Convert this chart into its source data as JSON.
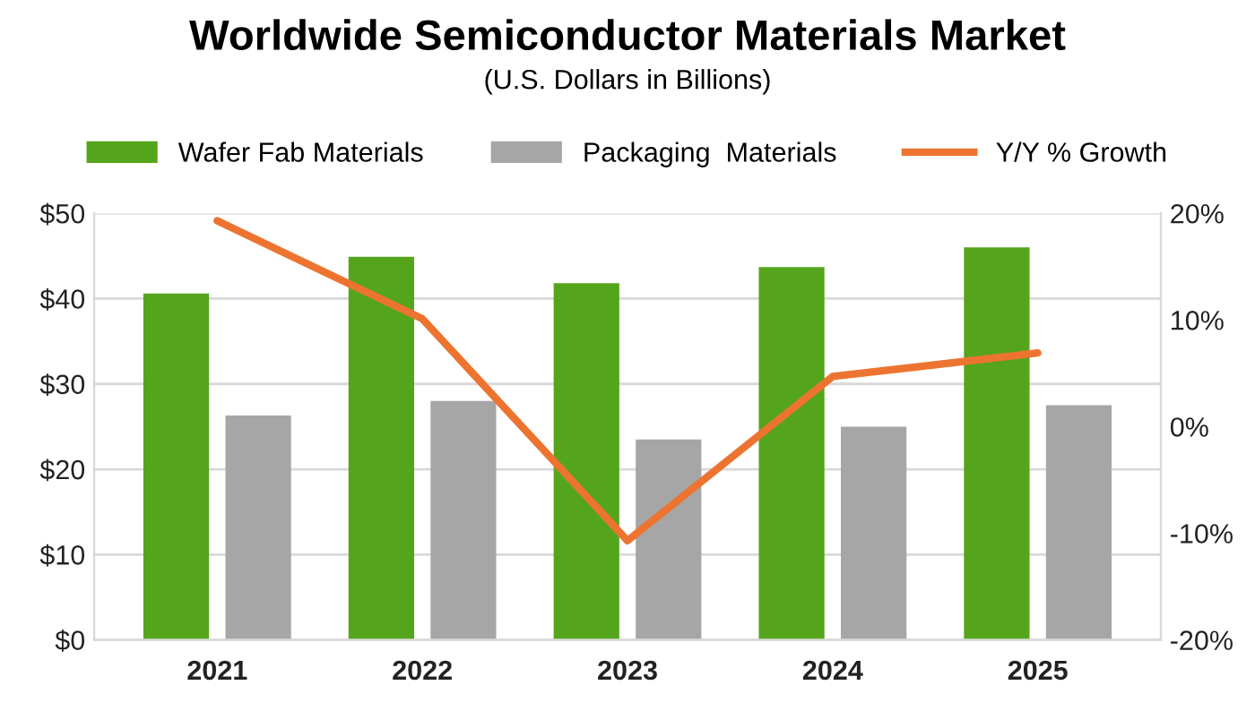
{
  "chart_data": {
    "type": "bar",
    "title": "Worldwide Semiconductor Materials Market",
    "subtitle": "(U.S. Dollars in Billions)",
    "categories": [
      "2021",
      "2022",
      "2023",
      "2024",
      "2025"
    ],
    "series": [
      {
        "name": "Wafer Fab Materials",
        "color": "#55a51c",
        "values": [
          40.6,
          44.9,
          41.8,
          43.7,
          46.0
        ]
      },
      {
        "name": "Packaging  Materials",
        "color": "#a6a6a6",
        "values": [
          26.3,
          28.0,
          23.5,
          25.0,
          27.5
        ]
      },
      {
        "name": "Y/Y % Growth",
        "type": "line",
        "axis": "y2",
        "color": "#ed7430",
        "values": [
          19.3,
          10.1,
          -10.7,
          4.7,
          6.9
        ]
      }
    ],
    "ylim": [
      0,
      50
    ],
    "yticks": [
      {
        "value": 0,
        "label": "$0"
      },
      {
        "value": 10,
        "label": "$10"
      },
      {
        "value": 20,
        "label": "$20"
      },
      {
        "value": 30,
        "label": "$30"
      },
      {
        "value": 40,
        "label": "$40"
      },
      {
        "value": 50,
        "label": "$50"
      }
    ],
    "y2lim": [
      -20,
      20
    ],
    "y2ticks": [
      {
        "value": -20,
        "label": "-20%"
      },
      {
        "value": -10,
        "label": "-10%"
      },
      {
        "value": 0,
        "label": "0%"
      },
      {
        "value": 10,
        "label": "10%"
      },
      {
        "value": 20,
        "label": "20%"
      }
    ],
    "grid": "y",
    "legend": "top"
  }
}
